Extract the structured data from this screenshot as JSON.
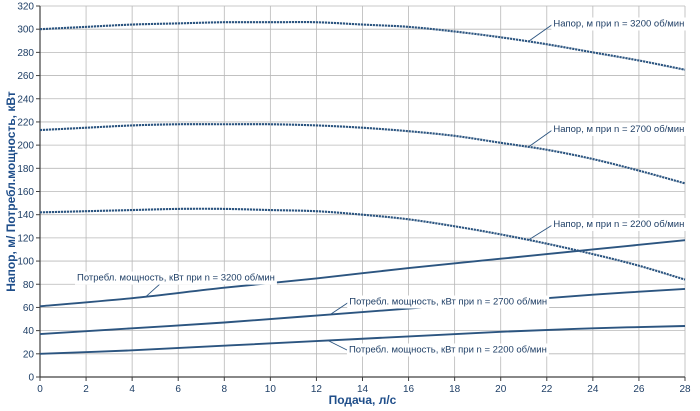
{
  "chart_data": {
    "type": "line",
    "xlabel": "Подача, л/с",
    "ylabel": "Напор, м/ Потребл.мощность, кВт",
    "xlim": [
      0,
      28
    ],
    "ylim": [
      0,
      320
    ],
    "xticks": [
      "0",
      "2",
      "4",
      "6",
      "8",
      "10",
      "12",
      "14",
      "16",
      "18",
      "20",
      "22",
      "24",
      "26",
      "28"
    ],
    "yticks": [
      "0",
      "20",
      "40",
      "60",
      "80",
      "100",
      "120",
      "140",
      "160",
      "180",
      "200",
      "220",
      "240",
      "260",
      "280",
      "300",
      "320"
    ],
    "grid": true,
    "colors": {
      "line": "#2c5580",
      "grid": "#b8b8b8",
      "axis": "#404040",
      "text": "#1f3f66",
      "title": "#1f4e8a"
    },
    "series": [
      {
        "name": "Напор, м при n = 3200 об/мин",
        "style": "dashed",
        "x": [
          0,
          2,
          4,
          6,
          8,
          10,
          12,
          14,
          16,
          18,
          20,
          22,
          24,
          26,
          28
        ],
        "y": [
          300,
          302,
          304,
          305,
          306,
          306,
          306,
          304,
          302,
          298,
          293,
          287,
          280,
          273,
          265
        ]
      },
      {
        "name": "Напор, м при  n = 2700 об/мин",
        "style": "dashed",
        "x": [
          0,
          2,
          4,
          6,
          8,
          10,
          12,
          14,
          16,
          18,
          20,
          22,
          24,
          26,
          28
        ],
        "y": [
          213,
          215,
          217,
          218,
          218,
          218,
          217,
          215,
          212,
          208,
          202,
          196,
          188,
          178,
          167
        ]
      },
      {
        "name": "Напор, м при n = 2200 об/мин",
        "style": "dashed",
        "x": [
          0,
          2,
          4,
          6,
          8,
          10,
          12,
          14,
          16,
          18,
          20,
          22,
          24,
          26,
          28
        ],
        "y": [
          142,
          143,
          144,
          145,
          145,
          144,
          143,
          140,
          136,
          130,
          123,
          115,
          106,
          96,
          84
        ]
      },
      {
        "name": "Потребл. мощность, кВт при n = 3200 об/мин",
        "style": "solid",
        "x": [
          0,
          4,
          8,
          12,
          16,
          20,
          24,
          28
        ],
        "y": [
          61,
          68,
          77,
          85,
          94,
          102,
          110,
          118
        ]
      },
      {
        "name": "Потребл. мощность, кВт при n = 2700 об/мин",
        "style": "solid",
        "x": [
          0,
          4,
          8,
          12,
          16,
          20,
          24,
          28
        ],
        "y": [
          37,
          42,
          47,
          53,
          59,
          65,
          71,
          76
        ]
      },
      {
        "name": "Потребл. мощность, кВт при  n = 2200 об/мин",
        "style": "solid",
        "x": [
          0,
          4,
          8,
          12,
          16,
          20,
          24,
          28
        ],
        "y": [
          20,
          23,
          27,
          31,
          35,
          39,
          42,
          44
        ]
      }
    ],
    "annotations": [
      {
        "text": "Напор, м при n = 3200 об/мин",
        "series": 0,
        "anchor_x": 21.2
      },
      {
        "text": "Напор, м при  n = 2700 об/мин",
        "series": 1,
        "anchor_x": 21.2
      },
      {
        "text": "Напор, м при n = 2200 об/мин",
        "series": 2,
        "anchor_x": 21.2
      },
      {
        "text": "Потребл. мощность, кВт при n = 3200 об/мин",
        "series": 3,
        "anchor_x": 4.6
      },
      {
        "text": "Потребл. мощность, кВт при n = 2700 об/мин",
        "series": 4,
        "anchor_x": 12.6
      },
      {
        "text": "Потребл. мощность, кВт при  n = 2200 об/мин",
        "series": 5,
        "anchor_x": 12.5
      }
    ]
  }
}
